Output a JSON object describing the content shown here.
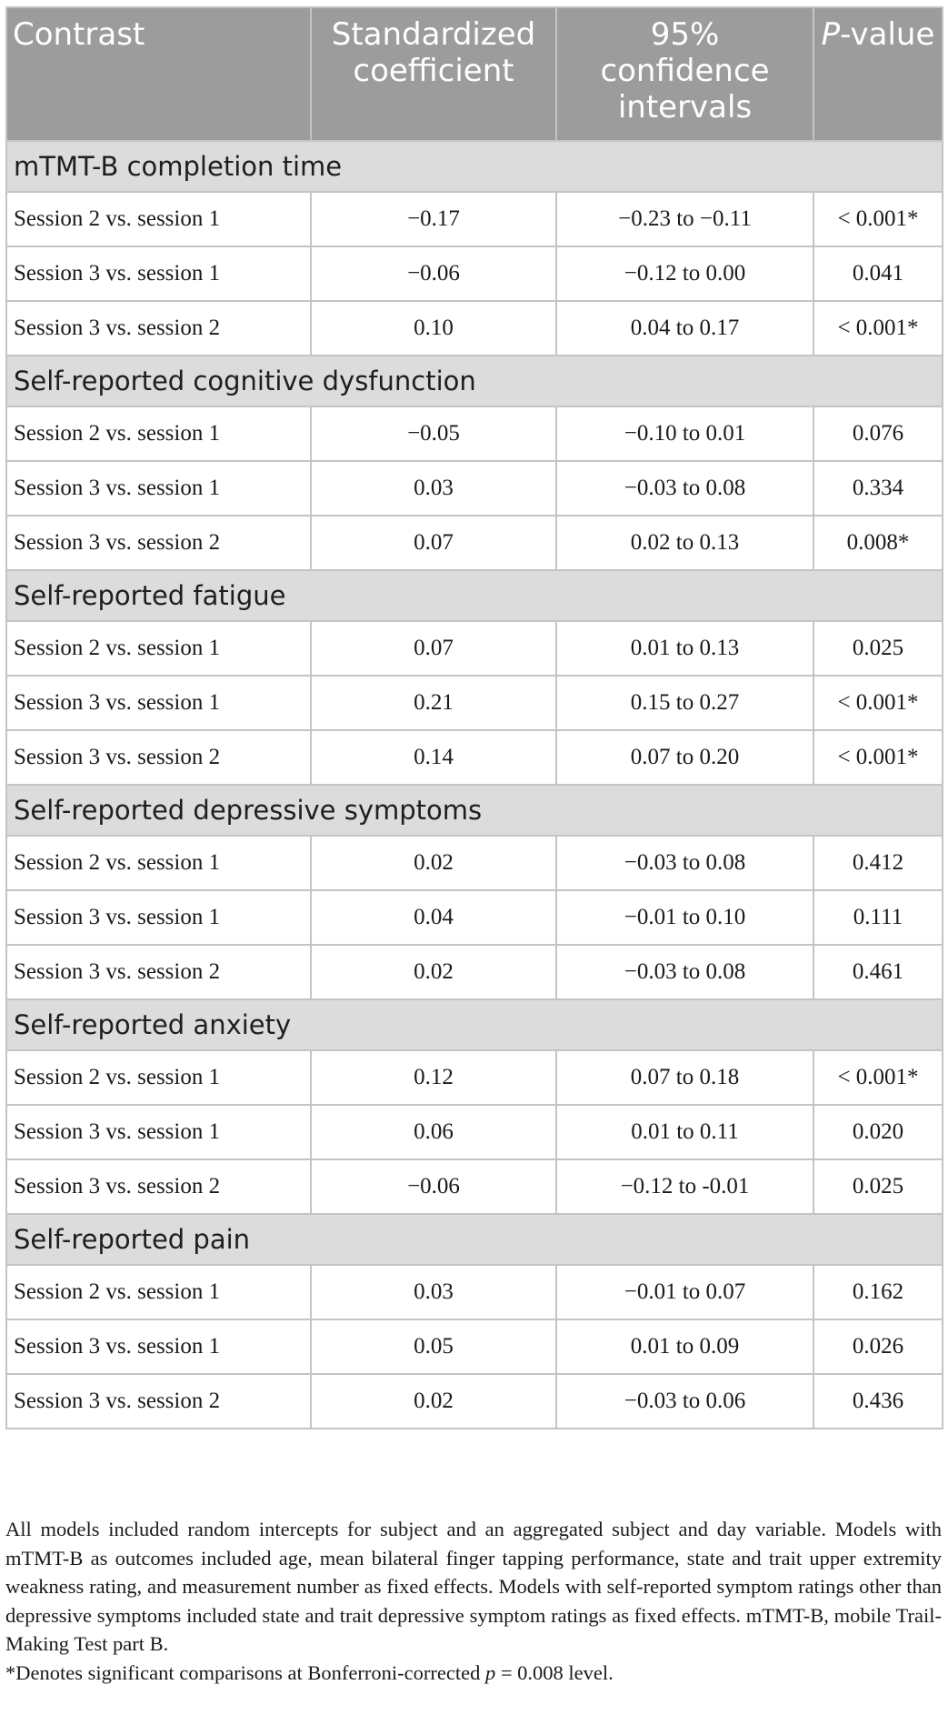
{
  "table": {
    "headers": {
      "contrast": "Contrast",
      "coef": "Standardized coefficient",
      "ci": "95% confidence intervals",
      "p_italic": "P",
      "p_rest": "-value"
    },
    "sections": [
      {
        "title": "mTMT-B completion time",
        "rows": [
          {
            "contrast": "Session 2 vs. session 1",
            "coef": "−0.17",
            "ci": "−0.23 to −0.11",
            "p": "< 0.001*"
          },
          {
            "contrast": "Session 3 vs. session 1",
            "coef": "−0.06",
            "ci": "−0.12 to 0.00",
            "p": "0.041"
          },
          {
            "contrast": "Session 3 vs. session 2",
            "coef": "0.10",
            "ci": "0.04 to 0.17",
            "p": "< 0.001*"
          }
        ]
      },
      {
        "title": "Self-reported cognitive dysfunction",
        "rows": [
          {
            "contrast": "Session 2 vs. session 1",
            "coef": "−0.05",
            "ci": "−0.10 to 0.01",
            "p": "0.076"
          },
          {
            "contrast": "Session 3 vs. session 1",
            "coef": "0.03",
            "ci": "−0.03 to 0.08",
            "p": "0.334"
          },
          {
            "contrast": "Session 3 vs. session 2",
            "coef": "0.07",
            "ci": "0.02 to 0.13",
            "p": "0.008*"
          }
        ]
      },
      {
        "title": "Self-reported fatigue",
        "rows": [
          {
            "contrast": "Session 2 vs. session 1",
            "coef": "0.07",
            "ci": "0.01 to 0.13",
            "p": "0.025"
          },
          {
            "contrast": "Session 3 vs. session 1",
            "coef": "0.21",
            "ci": "0.15 to 0.27",
            "p": "< 0.001*"
          },
          {
            "contrast": "Session 3 vs. session 2",
            "coef": "0.14",
            "ci": "0.07 to 0.20",
            "p": "< 0.001*"
          }
        ]
      },
      {
        "title": "Self-reported depressive symptoms",
        "rows": [
          {
            "contrast": "Session 2 vs. session 1",
            "coef": "0.02",
            "ci": "−0.03 to 0.08",
            "p": "0.412"
          },
          {
            "contrast": "Session 3 vs. session 1",
            "coef": "0.04",
            "ci": "−0.01 to 0.10",
            "p": "0.111"
          },
          {
            "contrast": "Session 3 vs. session 2",
            "coef": "0.02",
            "ci": "−0.03 to 0.08",
            "p": "0.461"
          }
        ]
      },
      {
        "title": "Self-reported anxiety",
        "rows": [
          {
            "contrast": "Session 2 vs. session 1",
            "coef": "0.12",
            "ci": "0.07 to 0.18",
            "p": "< 0.001*"
          },
          {
            "contrast": "Session 3 vs. session 1",
            "coef": "0.06",
            "ci": "0.01 to 0.11",
            "p": "0.020"
          },
          {
            "contrast": "Session 3 vs. session 2",
            "coef": "−0.06",
            "ci": "−0.12 to -0.01",
            "p": "0.025"
          }
        ]
      },
      {
        "title": "Self-reported pain",
        "rows": [
          {
            "contrast": "Session 2 vs. session 1",
            "coef": "0.03",
            "ci": "−0.01 to 0.07",
            "p": "0.162"
          },
          {
            "contrast": "Session 3 vs. session 1",
            "coef": "0.05",
            "ci": "0.01 to 0.09",
            "p": "0.026"
          },
          {
            "contrast": "Session 3 vs. session 2",
            "coef": "0.02",
            "ci": "−0.03 to 0.06",
            "p": "0.436"
          }
        ]
      }
    ]
  },
  "notes": {
    "main": "All models included random intercepts for subject and an aggregated subject and day variable. Models with mTMT-B as outcomes included age, mean bilateral finger tapping performance, state and trait upper extremity weakness rating, and measurement number as fixed effects. Models with self-reported symptom ratings other than depressive symptoms included state and trait depressive symptom ratings as fixed effects. mTMT-B, mobile Trail-Making Test part B.",
    "sig_prefix": "*Denotes significant comparisons at Bonferroni-corrected ",
    "sig_p": "p",
    "sig_suffix": " = 0.008 level."
  }
}
